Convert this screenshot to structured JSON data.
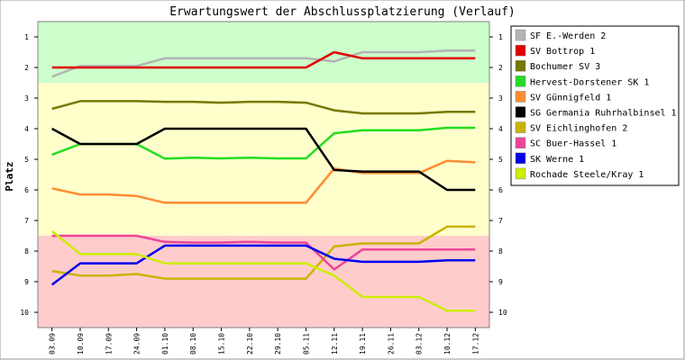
{
  "chart_data": {
    "type": "line",
    "title": "Erwartungswert der Abschlussplatzierung (Verlauf)",
    "ylabel": "Platz",
    "xlabel": "",
    "ylim": [
      10.5,
      0.5
    ],
    "y_ticks": [
      "1",
      "2",
      "3",
      "4",
      "5",
      "6",
      "7",
      "8",
      "9",
      "10"
    ],
    "grid": false,
    "legend_position": "right",
    "bands": [
      {
        "from": 0.5,
        "to": 2.5,
        "color": "#ccffcc"
      },
      {
        "from": 2.5,
        "to": 7.5,
        "color": "#ffffcc"
      },
      {
        "from": 7.5,
        "to": 10.5,
        "color": "#ffcccc"
      }
    ],
    "categories": [
      "03.09",
      "10.09",
      "17.09",
      "24.09",
      "01.10",
      "08.10",
      "15.10",
      "22.10",
      "29.10",
      "05.11",
      "12.11",
      "19.11",
      "26.11",
      "03.12",
      "10.12",
      "17.12"
    ],
    "series": [
      {
        "name": "SF E.-Werden 2",
        "color": "#b4b4b4",
        "values": [
          2.3,
          1.95,
          1.95,
          1.95,
          1.7,
          1.7,
          1.7,
          1.7,
          1.7,
          1.7,
          1.8,
          1.5,
          1.5,
          1.5,
          1.45,
          1.45
        ]
      },
      {
        "name": "SV Bottrop 1",
        "color": "#e00000",
        "values": [
          2.0,
          2.0,
          2.0,
          2.0,
          2.0,
          2.0,
          2.0,
          2.0,
          2.0,
          2.0,
          1.5,
          1.7,
          1.7,
          1.7,
          1.7,
          1.7
        ]
      },
      {
        "name": "Bochumer SV 3",
        "color": "#777700",
        "values": [
          3.35,
          3.1,
          3.1,
          3.1,
          3.12,
          3.12,
          3.15,
          3.12,
          3.12,
          3.15,
          3.4,
          3.5,
          3.5,
          3.5,
          3.45,
          3.45
        ]
      },
      {
        "name": "Hervest-Dorstener SK 1",
        "color": "#22dd22",
        "values": [
          4.85,
          4.5,
          4.5,
          4.5,
          4.98,
          4.95,
          4.97,
          4.95,
          4.97,
          4.97,
          4.15,
          4.05,
          4.05,
          4.05,
          3.97,
          3.97
        ]
      },
      {
        "name": "SV Günnigfeld 1",
        "color": "#ff8c33",
        "values": [
          5.95,
          6.15,
          6.15,
          6.2,
          6.42,
          6.42,
          6.42,
          6.42,
          6.42,
          6.42,
          5.3,
          5.45,
          5.45,
          5.45,
          5.05,
          5.1
        ]
      },
      {
        "name": "SG Germania Ruhrhalbinsel 1",
        "color": "#000000",
        "values": [
          4.0,
          4.5,
          4.5,
          4.5,
          4.0,
          4.0,
          4.0,
          4.0,
          4.0,
          4.0,
          5.35,
          5.4,
          5.4,
          5.4,
          6.0,
          6.0
        ]
      },
      {
        "name": "SV Eichlinghofen 2",
        "color": "#c8b400",
        "values": [
          8.65,
          8.8,
          8.8,
          8.75,
          8.9,
          8.9,
          8.9,
          8.9,
          8.9,
          8.9,
          7.85,
          7.75,
          7.75,
          7.75,
          7.2,
          7.2
        ]
      },
      {
        "name": "SC Buer-Hassel 1",
        "color": "#ee4499",
        "values": [
          7.5,
          7.5,
          7.5,
          7.5,
          7.7,
          7.72,
          7.72,
          7.7,
          7.72,
          7.72,
          8.6,
          7.95,
          7.95,
          7.95,
          7.95,
          7.95
        ]
      },
      {
        "name": "SK Werne 1",
        "color": "#0000ee",
        "values": [
          9.1,
          8.4,
          8.4,
          8.4,
          7.82,
          7.82,
          7.82,
          7.82,
          7.82,
          7.82,
          8.25,
          8.35,
          8.35,
          8.35,
          8.3,
          8.3
        ]
      },
      {
        "name": "Rochade Steele/Kray 1",
        "color": "#ccee00",
        "values": [
          7.35,
          8.1,
          8.1,
          8.1,
          8.4,
          8.4,
          8.4,
          8.4,
          8.4,
          8.4,
          8.8,
          9.5,
          9.5,
          9.5,
          9.95,
          9.95
        ]
      }
    ]
  }
}
